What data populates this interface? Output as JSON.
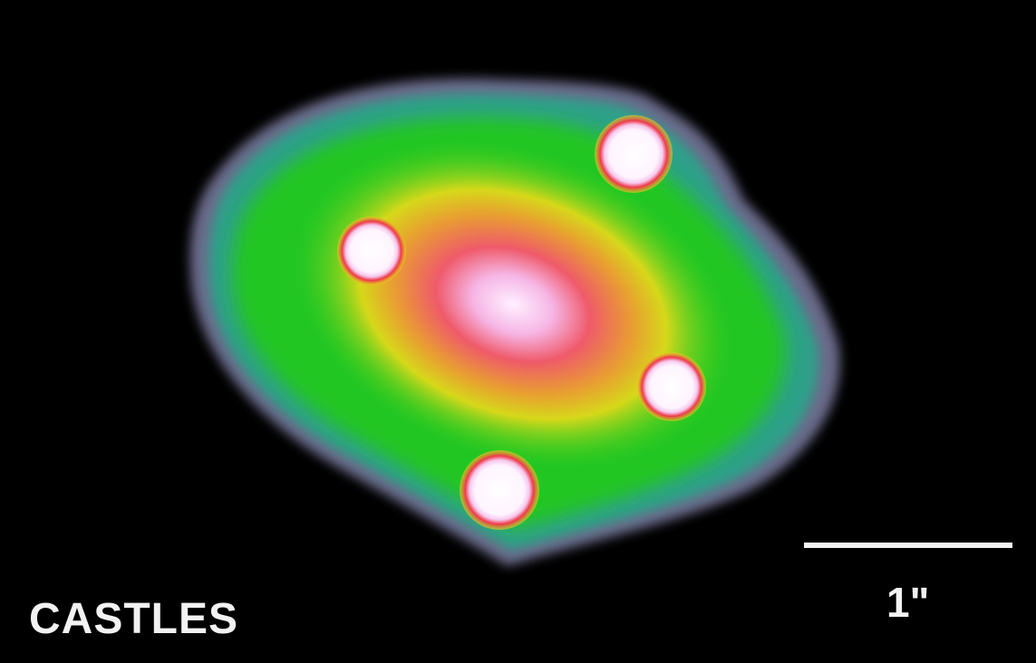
{
  "image": {
    "watermark": "CASTLES",
    "scale_bar_label": "1\""
  },
  "colors": {
    "background": "#000000",
    "halo_outer": "#6a6a8a",
    "halo_teal": "#2fa08a",
    "halo_green": "#22cc22",
    "ring_yellow": "#dcd81a",
    "core_red": "#ee4a55",
    "core_white": "#ffe8ff",
    "image_rim": "#ee3344",
    "text": "#f2f2f2"
  },
  "objects": [
    {
      "name": "lens-galaxy-core"
    },
    {
      "name": "quasar-image-a"
    },
    {
      "name": "quasar-image-b"
    },
    {
      "name": "quasar-image-c"
    },
    {
      "name": "quasar-image-d"
    }
  ]
}
